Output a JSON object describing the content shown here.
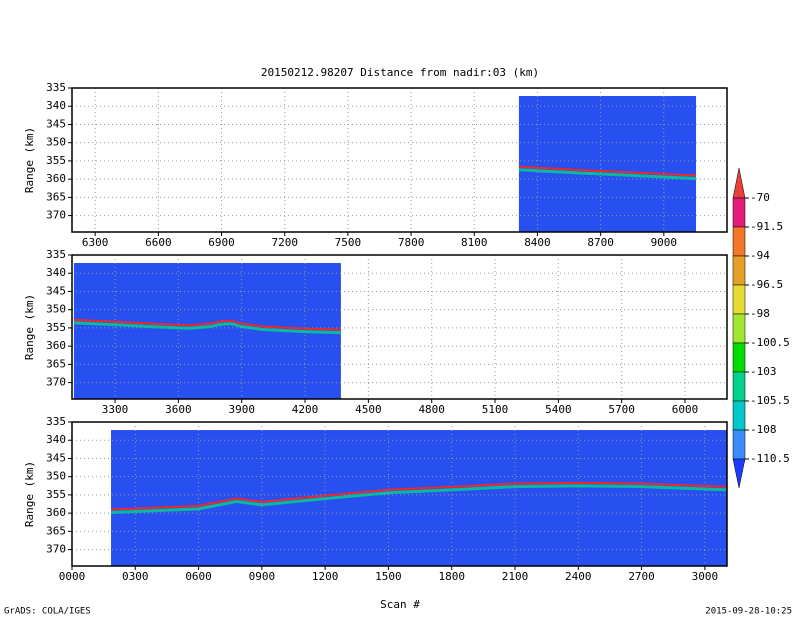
{
  "title": "20150212.98207    Distance from nadir:03 (km)",
  "xlabel": "Scan #",
  "credit": "GrADS: COLA/IGES",
  "timestamp": "2015-09-28-10:25",
  "colorbar": {
    "levels": [
      -70,
      -91.5,
      -94,
      -96.5,
      -98,
      -100.5,
      -103,
      -105.5,
      -108,
      -110.5
    ],
    "colors": [
      "#e8403a",
      "#e6197d",
      "#f07828",
      "#e6a028",
      "#e6dc32",
      "#a0e632",
      "#00dc00",
      "#00d28c",
      "#00c8c8",
      "#3c8cff",
      "#1e3cff"
    ]
  },
  "chart_data": [
    {
      "type": "line",
      "ylabel": "Range (km)",
      "xlim": [
        6190,
        9300
      ],
      "ylim": [
        335,
        374.5
      ],
      "xticks": [
        6300,
        6600,
        6900,
        7200,
        7500,
        7800,
        8100,
        8400,
        8700,
        9000
      ],
      "yticks": [
        335,
        340,
        345,
        350,
        355,
        360,
        365,
        370
      ],
      "grid": true,
      "swath": [
        8312,
        9153
      ],
      "swath_top": 337.2,
      "swath_color": "#2850f0",
      "x": [
        8312,
        8600,
        8900,
        9153
      ],
      "values": [
        356.6,
        357.5,
        358.3,
        359.0
      ],
      "color": "#f02828"
    },
    {
      "type": "line",
      "ylabel": "Range (km)",
      "xlim": [
        3096,
        6199
      ],
      "ylim": [
        335,
        374.5
      ],
      "xticks": [
        3300,
        3600,
        3900,
        4200,
        4500,
        4800,
        5100,
        5400,
        5700,
        6000
      ],
      "yticks": [
        335,
        340,
        345,
        350,
        355,
        360,
        365,
        370
      ],
      "grid": true,
      "swath": [
        3105,
        4370
      ],
      "swath_top": 337.2,
      "swath_color": "#2850f0",
      "x": [
        3105,
        3300,
        3500,
        3650,
        3750,
        3800,
        3850,
        3900,
        4000,
        4200,
        4370
      ],
      "values": [
        352.8,
        353.3,
        353.9,
        354.3,
        353.8,
        353.2,
        353.0,
        353.8,
        354.6,
        355.2,
        355.5
      ],
      "color": "#f02828"
    },
    {
      "type": "line",
      "ylabel": "Range (km)",
      "xlim": [
        0,
        3105
      ],
      "ylim": [
        335,
        374.5
      ],
      "xticks": [
        {
          "value": 0,
          "label": "0000"
        },
        {
          "value": 300,
          "label": "0300"
        },
        {
          "value": 600,
          "label": "0600"
        },
        {
          "value": 900,
          "label": "0900"
        },
        1200,
        1500,
        1800,
        2100,
        2400,
        2700,
        3000
      ],
      "yticks": [
        335,
        340,
        345,
        350,
        355,
        360,
        365,
        370
      ],
      "grid": true,
      "swath": [
        185,
        3105
      ],
      "swath_top": 337.2,
      "swath_color": "#2850f0",
      "x": [
        185,
        600,
        780,
        900,
        1200,
        1500,
        1800,
        2100,
        2400,
        2700,
        3105
      ],
      "values": [
        359.0,
        358.0,
        356.0,
        356.9,
        355.2,
        353.6,
        352.8,
        351.9,
        351.7,
        351.9,
        352.8
      ],
      "color": "#f02828"
    }
  ]
}
